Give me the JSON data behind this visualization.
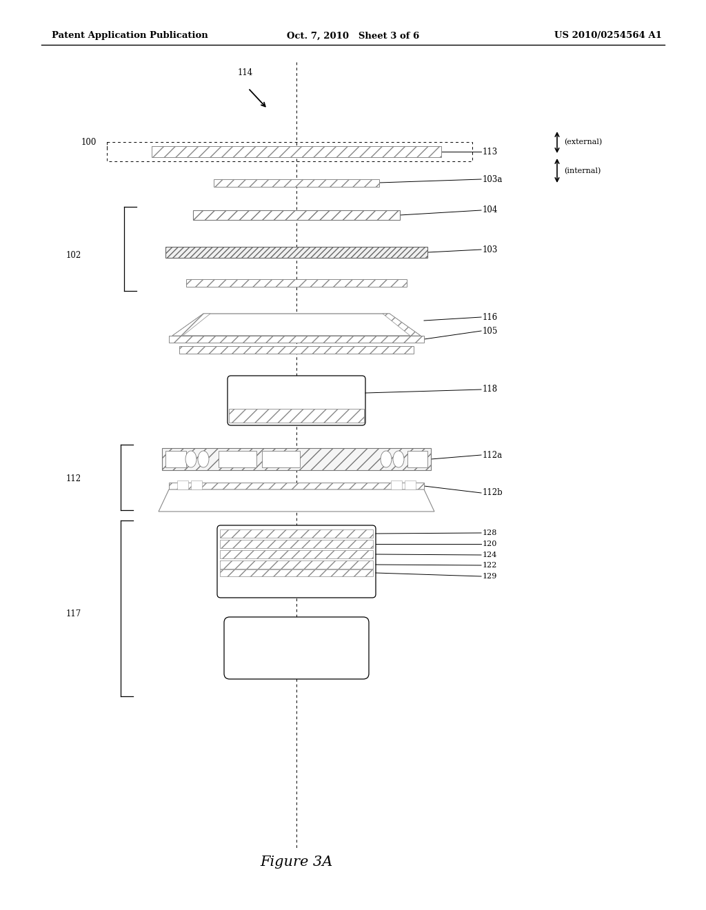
{
  "header_left": "Patent Application Publication",
  "header_mid": "Oct. 7, 2010   Sheet 3 of 6",
  "header_right": "US 2010/0254564 A1",
  "figure_label": "Figure 3A",
  "bg_color": "#ffffff"
}
